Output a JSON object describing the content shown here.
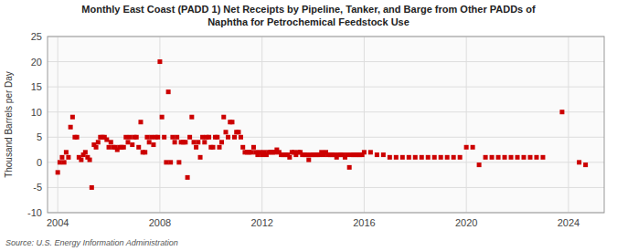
{
  "chart_data": {
    "type": "scatter",
    "title": "Monthly East Coast (PADD 1) Net Receipts by Pipeline, Tanker, and Barge from Other PADDs of\nNaphtha for Petrochemical Feedstock Use",
    "ylabel": "Thousand Barrels per Day",
    "source": "Source: U.S. Energy Information Administration",
    "color": "#cc0000",
    "marker": "square",
    "grid": true,
    "xlim": [
      2003.6,
      2025.4
    ],
    "ylim": [
      -10,
      25
    ],
    "xticks": [
      2004,
      2008,
      2012,
      2016,
      2020,
      2024
    ],
    "yticks": [
      -10,
      -5,
      0,
      5,
      10,
      15,
      20,
      25
    ],
    "x": [
      2004.0,
      2004.08,
      2004.17,
      2004.25,
      2004.33,
      2004.42,
      2004.5,
      2004.58,
      2004.67,
      2004.75,
      2004.83,
      2004.92,
      2005.0,
      2005.08,
      2005.17,
      2005.25,
      2005.33,
      2005.42,
      2005.5,
      2005.58,
      2005.67,
      2005.75,
      2005.83,
      2005.92,
      2006.0,
      2006.08,
      2006.17,
      2006.25,
      2006.33,
      2006.42,
      2006.5,
      2006.58,
      2006.67,
      2006.75,
      2006.83,
      2006.92,
      2007.0,
      2007.08,
      2007.17,
      2007.25,
      2007.33,
      2007.42,
      2007.5,
      2007.58,
      2007.67,
      2007.75,
      2007.83,
      2007.92,
      2008.0,
      2008.08,
      2008.17,
      2008.25,
      2008.33,
      2008.42,
      2008.5,
      2008.58,
      2008.67,
      2008.75,
      2008.83,
      2008.92,
      2009.0,
      2009.08,
      2009.17,
      2009.25,
      2009.33,
      2009.42,
      2009.5,
      2009.58,
      2009.67,
      2009.75,
      2009.83,
      2009.92,
      2010.0,
      2010.08,
      2010.17,
      2010.25,
      2010.33,
      2010.42,
      2010.5,
      2010.58,
      2010.67,
      2010.75,
      2010.83,
      2010.92,
      2011.0,
      2011.08,
      2011.17,
      2011.25,
      2011.33,
      2011.42,
      2011.5,
      2011.58,
      2011.67,
      2011.75,
      2011.83,
      2011.92,
      2012.0,
      2012.08,
      2012.17,
      2012.25,
      2012.33,
      2012.42,
      2012.5,
      2012.58,
      2012.67,
      2012.75,
      2012.83,
      2012.92,
      2013.0,
      2013.08,
      2013.17,
      2013.25,
      2013.33,
      2013.42,
      2013.5,
      2013.58,
      2013.67,
      2013.75,
      2013.83,
      2013.92,
      2014.0,
      2014.08,
      2014.17,
      2014.25,
      2014.33,
      2014.42,
      2014.5,
      2014.58,
      2014.67,
      2014.75,
      2014.83,
      2014.92,
      2015.0,
      2015.08,
      2015.17,
      2015.25,
      2015.33,
      2015.42,
      2015.5,
      2015.58,
      2015.67,
      2015.75,
      2015.83,
      2015.92,
      2016.0,
      2016.25,
      2016.5,
      2016.75,
      2017.0,
      2017.25,
      2017.5,
      2017.75,
      2018.0,
      2018.25,
      2018.5,
      2018.75,
      2019.0,
      2019.25,
      2019.5,
      2019.75,
      2020.0,
      2020.25,
      2020.5,
      2020.75,
      2021.0,
      2021.25,
      2021.5,
      2021.75,
      2022.0,
      2022.25,
      2022.5,
      2022.75,
      2023.0,
      2023.75,
      2024.42,
      2024.67
    ],
    "values": [
      -2.0,
      0.0,
      1.0,
      0.0,
      2.0,
      1.0,
      7.0,
      9.0,
      5.0,
      5.0,
      1.0,
      0.5,
      1.5,
      2.0,
      1.0,
      0.5,
      -5.0,
      3.5,
      3.0,
      4.0,
      5.0,
      5.0,
      5.0,
      4.5,
      3.0,
      4.0,
      3.0,
      3.0,
      2.5,
      3.0,
      3.0,
      3.0,
      5.0,
      4.0,
      5.0,
      3.5,
      5.0,
      5.0,
      3.0,
      8.0,
      2.0,
      2.0,
      5.0,
      4.0,
      5.0,
      3.5,
      5.0,
      5.0,
      20.0,
      9.0,
      5.0,
      0.0,
      14.0,
      0.0,
      5.0,
      4.0,
      5.0,
      0.0,
      4.0,
      4.0,
      4.0,
      -3.0,
      5.0,
      9.0,
      4.0,
      3.0,
      4.0,
      1.0,
      5.0,
      4.0,
      5.0,
      5.0,
      3.0,
      3.0,
      5.0,
      5.0,
      3.0,
      4.0,
      9.0,
      6.0,
      5.0,
      8.0,
      8.0,
      5.0,
      6.0,
      6.0,
      5.0,
      3.0,
      2.0,
      2.0,
      2.0,
      2.0,
      3.0,
      2.0,
      1.5,
      2.0,
      1.5,
      2.0,
      1.5,
      2.0,
      2.0,
      2.0,
      2.0,
      2.5,
      2.0,
      1.5,
      1.5,
      1.5,
      1.5,
      1.0,
      2.0,
      2.0,
      1.5,
      2.0,
      2.0,
      1.5,
      1.5,
      1.5,
      0.5,
      1.5,
      1.5,
      1.5,
      1.5,
      1.5,
      2.0,
      1.5,
      2.0,
      1.5,
      1.5,
      1.5,
      1.5,
      1.0,
      1.5,
      1.5,
      1.5,
      1.0,
      1.5,
      -1.0,
      1.5,
      1.5,
      1.5,
      1.5,
      1.5,
      1.5,
      2.0,
      2.0,
      1.5,
      1.5,
      1.0,
      1.0,
      1.0,
      1.0,
      1.0,
      1.0,
      1.0,
      1.0,
      1.0,
      1.0,
      1.0,
      1.0,
      3.0,
      3.0,
      -0.5,
      1.0,
      1.0,
      1.0,
      1.0,
      1.0,
      1.0,
      1.0,
      1.0,
      1.0,
      1.0,
      10.0,
      0.0,
      -0.5
    ]
  }
}
